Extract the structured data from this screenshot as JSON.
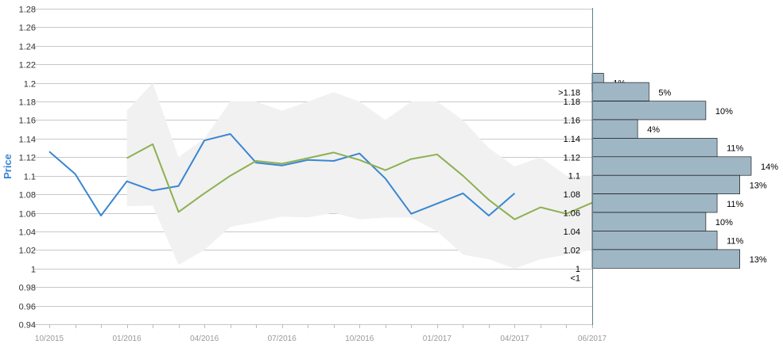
{
  "colors": {
    "actual": "#3a86d2",
    "forecast": "#8db052",
    "band": "#f1f1f1",
    "bars": "#9fb6c5",
    "bar_stroke": "#000000",
    "grid": "#c8c8c8",
    "axis_label": "#3a86d2"
  },
  "chart_data": [
    {
      "type": "line",
      "ylabel": "Price",
      "ylim": [
        0.94,
        1.28
      ],
      "yticks": [
        0.94,
        0.96,
        0.98,
        1.0,
        1.02,
        1.04,
        1.06,
        1.08,
        1.1,
        1.12,
        1.14,
        1.16,
        1.18,
        1.2,
        1.22,
        1.24,
        1.26,
        1.28
      ],
      "ytick_labels": [
        "0.94",
        "0.96",
        "0.98",
        "1",
        "1.02",
        "1.04",
        "1.06",
        "1.08",
        "1.1",
        "1.12",
        "1.14",
        "1.16",
        "1.18",
        "1.2",
        "1.22",
        "1.24",
        "1.26",
        "1.28"
      ],
      "x_range": [
        0,
        21
      ],
      "x_ticks": [
        0,
        3,
        6,
        9,
        12,
        15,
        18,
        21
      ],
      "x_tick_labels": [
        "10/2015",
        "01/2016",
        "04/2016",
        "07/2016",
        "10/2016",
        "01/2017",
        "04/2017",
        "06/2017"
      ],
      "grid": true,
      "series": [
        {
          "role": "actual",
          "x": [
            0,
            1,
            2,
            3,
            4,
            5,
            6,
            7,
            8,
            9,
            10,
            11,
            12,
            13,
            14,
            15,
            16,
            17,
            18
          ],
          "values": [
            1.126,
            1.102,
            1.057,
            1.094,
            1.084,
            1.089,
            1.138,
            1.145,
            1.114,
            1.111,
            1.117,
            1.116,
            1.124,
            1.097,
            1.059,
            1.07,
            1.081,
            1.057,
            1.081
          ]
        },
        {
          "role": "forecast",
          "x": [
            3,
            4,
            5,
            6,
            7,
            8,
            9,
            10,
            11,
            12,
            13,
            14,
            15,
            16,
            17,
            18,
            19,
            20,
            21
          ],
          "values": [
            1.119,
            1.134,
            1.061,
            1.081,
            1.1,
            1.116,
            1.113,
            1.119,
            1.125,
            1.117,
            1.106,
            1.118,
            1.123,
            1.1,
            1.074,
            1.053,
            1.066,
            1.059,
            1.071
          ]
        },
        {
          "role": "range",
          "x": [
            3,
            4,
            5,
            6,
            7,
            8,
            9,
            10,
            11,
            12,
            13,
            14,
            15,
            16,
            17,
            18,
            19,
            20,
            21
          ],
          "high": [
            1.17,
            1.2,
            1.12,
            1.14,
            1.18,
            1.18,
            1.17,
            1.18,
            1.19,
            1.18,
            1.16,
            1.18,
            1.18,
            1.16,
            1.13,
            1.11,
            1.12,
            1.1,
            1.1
          ],
          "low": [
            1.067,
            1.068,
            1.004,
            1.02,
            1.045,
            1.05,
            1.056,
            1.055,
            1.06,
            1.053,
            1.055,
            1.055,
            1.04,
            1.015,
            1.01,
            1.0,
            1.01,
            1.015,
            1.02
          ]
        }
      ]
    },
    {
      "type": "bar",
      "orientation": "horizontal",
      "categories": [
        ">1.18",
        "1.18",
        "1.16",
        "1.14",
        "1.12",
        "1.1",
        "1.08",
        "1.06",
        "1.04",
        "1.02",
        "1",
        "<1"
      ],
      "values": [
        1,
        5,
        10,
        4,
        11,
        14,
        13,
        11,
        10,
        11,
        13,
        0
      ],
      "labels": [
        "1%",
        "5%",
        "10%",
        "4%",
        "11%",
        "14%",
        "13%",
        "11%",
        "10%",
        "11%",
        "13%",
        ""
      ],
      "xlim": [
        0,
        14
      ]
    }
  ]
}
